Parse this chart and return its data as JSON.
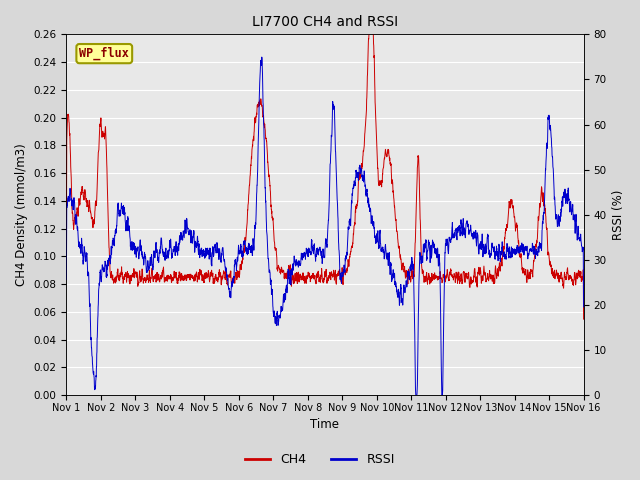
{
  "title": "LI7700 CH4 and RSSI",
  "xlabel": "Time",
  "ylabel_left": "CH4 Density (mmol/m3)",
  "ylabel_right": "RSSI (%)",
  "ylim_left": [
    0.0,
    0.26
  ],
  "ylim_right": [
    0,
    80
  ],
  "yticks_left": [
    0.0,
    0.02,
    0.04,
    0.06,
    0.08,
    0.1,
    0.12,
    0.14,
    0.16,
    0.18,
    0.2,
    0.22,
    0.24,
    0.26
  ],
  "yticks_right": [
    0,
    10,
    20,
    30,
    40,
    50,
    60,
    70,
    80
  ],
  "ch4_color": "#cc0000",
  "rssi_color": "#0000cc",
  "fig_bg_color": "#d8d8d8",
  "plot_bg_color": "#e8e8e8",
  "grid_color": "#ffffff",
  "legend_label": "WP_flux",
  "legend_box_color": "#ffff99",
  "legend_box_border": "#999900",
  "x_start": 1,
  "x_end": 16,
  "x_ticks": [
    1,
    2,
    3,
    4,
    5,
    6,
    7,
    8,
    9,
    10,
    11,
    12,
    13,
    14,
    15,
    16
  ],
  "x_tick_labels": [
    "Nov 1",
    "Nov 2",
    "Nov 3",
    "Nov 4",
    "Nov 5",
    "Nov 6",
    "Nov 7",
    "Nov 8",
    "Nov 9",
    "Nov 10",
    "Nov 11",
    "Nov 12",
    "Nov 13",
    "Nov 14",
    "Nov 15",
    "Nov 16"
  ]
}
